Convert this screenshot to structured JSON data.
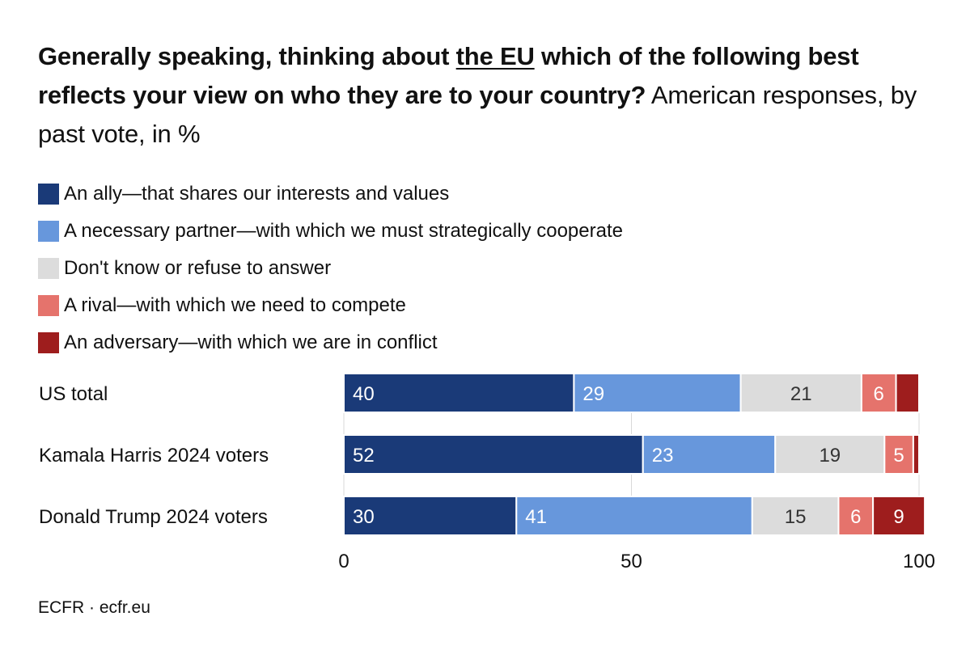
{
  "title": {
    "part1": "Generally speaking, thinking about ",
    "underlined": "the EU",
    "part2": " which of the following best reflects your view on who they are to your country?",
    "subtitle": " American responses, by past vote, in %"
  },
  "colors": {
    "ally": "#1a3a78",
    "partner": "#6797dc",
    "dontknow": "#dcdcdc",
    "rival": "#e5736c",
    "adversary": "#9e1d1d"
  },
  "chart_data": {
    "type": "bar",
    "orientation": "horizontal",
    "stacked": true,
    "categories": [
      "US total",
      "Kamala Harris 2024 voters",
      "Donald Trump 2024 voters"
    ],
    "series": [
      {
        "name": "An ally—that shares our interests and values",
        "key": "ally",
        "values": [
          40,
          52,
          30
        ],
        "labels": [
          "40",
          "52",
          "30"
        ],
        "label_color": "#ffffff"
      },
      {
        "name": "A necessary partner—with which we must strategically cooperate",
        "key": "partner",
        "values": [
          29,
          23,
          41
        ],
        "labels": [
          "29",
          "23",
          "41"
        ],
        "label_color": "#ffffff"
      },
      {
        "name": "Don't know or refuse to answer",
        "key": "dontknow",
        "values": [
          21,
          19,
          15
        ],
        "labels": [
          "21",
          "19",
          "15"
        ],
        "label_color": "#333333"
      },
      {
        "name": "A rival—with which we need to compete",
        "key": "rival",
        "values": [
          6,
          5,
          6
        ],
        "labels": [
          "6",
          "5",
          "6"
        ],
        "label_color": "#ffffff"
      },
      {
        "name": "An adversary—with which we are in conflict",
        "key": "adversary",
        "values": [
          4,
          1,
          9
        ],
        "labels": [
          "",
          "",
          "9"
        ],
        "label_color": "#ffffff"
      }
    ],
    "xlim": [
      0,
      100
    ],
    "xticks": [
      0,
      50,
      100
    ],
    "xtick_labels": [
      "0",
      "50",
      "100"
    ],
    "grid": true,
    "legend": "top"
  },
  "source": "ECFR · ecfr.eu"
}
